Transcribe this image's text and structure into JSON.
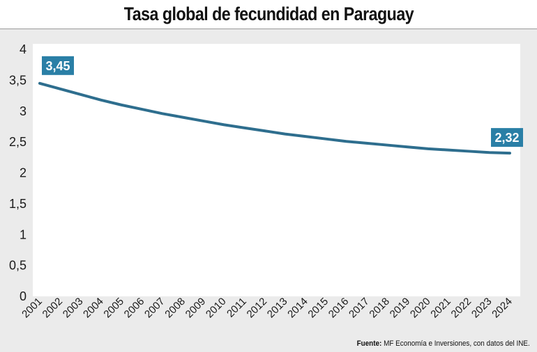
{
  "title": "Tasa global de fecundidad en Paraguay",
  "source_label": "Fuente:",
  "source_text": "MF Economía e Inversiones, con datos del INE.",
  "colors": {
    "line": "#2e6e8e",
    "label_box": "#2a7fa6",
    "plot_background": "#ffffff",
    "page_background": "#ebebeb"
  },
  "chart_data": {
    "type": "line",
    "title": "Tasa global de fecundidad en Paraguay",
    "xlabel": "",
    "ylabel": "",
    "ylim": [
      0,
      4
    ],
    "y_ticks": [
      "0",
      "0,5",
      "1",
      "1,5",
      "2",
      "2,5",
      "3",
      "3,5",
      "4"
    ],
    "y_tick_values": [
      0,
      0.5,
      1,
      1.5,
      2,
      2.5,
      3,
      3.5,
      4
    ],
    "grid": false,
    "x": [
      "2001",
      "2002",
      "2003",
      "2004",
      "2005",
      "2006",
      "2007",
      "2008",
      "2009",
      "2010",
      "2011",
      "2012",
      "2013",
      "2014",
      "2015",
      "2016",
      "2017",
      "2018",
      "2019",
      "2020",
      "2021",
      "2022",
      "2023",
      "2024"
    ],
    "series": [
      {
        "values": [
          3.45,
          3.36,
          3.27,
          3.18,
          3.1,
          3.03,
          2.96,
          2.9,
          2.84,
          2.78,
          2.73,
          2.68,
          2.63,
          2.59,
          2.55,
          2.51,
          2.48,
          2.45,
          2.42,
          2.39,
          2.37,
          2.35,
          2.33,
          2.32
        ]
      }
    ],
    "data_labels": [
      {
        "index": 0,
        "text": "3,45"
      },
      {
        "index": 23,
        "text": "2,32"
      }
    ]
  }
}
